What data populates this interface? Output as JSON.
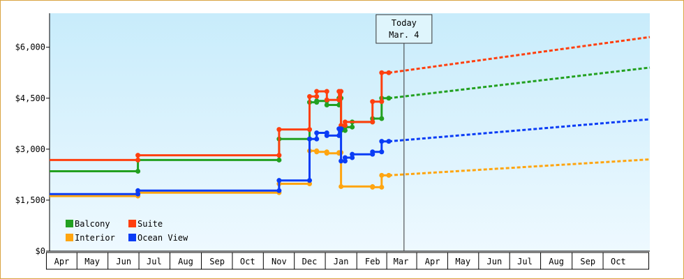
{
  "chart_data": {
    "type": "line",
    "title": "",
    "xlabel": "",
    "ylabel": "",
    "ylim": [
      0,
      7000
    ],
    "yticks": [
      0,
      1500,
      3000,
      4500,
      6000
    ],
    "ytick_labels": [
      "$0",
      "$1,500",
      "$3,000",
      "$4,500",
      "$6,000"
    ],
    "xlim": [
      "2013-03-20",
      "2014-11-01"
    ],
    "month_labels": [
      {
        "date": "2013-04-01",
        "label": "Apr"
      },
      {
        "date": "2013-05-01",
        "label": "May"
      },
      {
        "date": "2013-06-01",
        "label": "Jun"
      },
      {
        "date": "2013-07-01",
        "label": "Jul"
      },
      {
        "date": "2013-08-01",
        "label": "Aug"
      },
      {
        "date": "2013-09-01",
        "label": "Sep"
      },
      {
        "date": "2013-10-01",
        "label": "Oct"
      },
      {
        "date": "2013-11-01",
        "label": "Nov"
      },
      {
        "date": "2013-12-01",
        "label": "Dec"
      },
      {
        "date": "2014-01-01",
        "label": "Jan"
      },
      {
        "date": "2014-02-01",
        "label": "Feb"
      },
      {
        "date": "2014-03-01",
        "label": "Mar"
      },
      {
        "date": "2014-04-01",
        "label": "Apr"
      },
      {
        "date": "2014-05-01",
        "label": "May"
      },
      {
        "date": "2014-06-01",
        "label": "Jun"
      },
      {
        "date": "2014-07-01",
        "label": "Jul"
      },
      {
        "date": "2014-08-01",
        "label": "Aug"
      },
      {
        "date": "2014-09-01",
        "label": "Sep"
      },
      {
        "date": "2014-10-01",
        "label": "Oct"
      }
    ],
    "today": {
      "date": "2014-03-04",
      "label_line1": "Today",
      "label_line2": "Mar. 4"
    },
    "grid": false,
    "background": {
      "top": "#c8ecfb",
      "bottom": "#eef9ff"
    },
    "legend_position": "bottom-left",
    "series": [
      {
        "name": "Balcony",
        "color": "#22a020",
        "points": [
          [
            "2013-03-20",
            2350
          ],
          [
            "2013-06-15",
            2350
          ],
          [
            "2013-06-15",
            2680
          ],
          [
            "2013-11-01",
            2680
          ],
          [
            "2013-11-01",
            3300
          ],
          [
            "2013-12-01",
            3300
          ],
          [
            "2013-12-01",
            4380
          ],
          [
            "2013-12-08",
            4380
          ],
          [
            "2013-12-08",
            4420
          ],
          [
            "2013-12-18",
            4420
          ],
          [
            "2013-12-18",
            4300
          ],
          [
            "2013-12-30",
            4300
          ],
          [
            "2013-12-30",
            4500
          ],
          [
            "2014-01-01",
            4500
          ],
          [
            "2014-01-01",
            3550
          ],
          [
            "2014-01-05",
            3550
          ],
          [
            "2014-01-05",
            3650
          ],
          [
            "2014-01-12",
            3650
          ],
          [
            "2014-01-12",
            3800
          ],
          [
            "2014-02-01",
            3800
          ],
          [
            "2014-02-01",
            3900
          ],
          [
            "2014-02-10",
            3900
          ],
          [
            "2014-02-10",
            4500
          ],
          [
            "2014-02-17",
            4500
          ]
        ],
        "forecast": [
          [
            "2014-02-17",
            4500
          ],
          [
            "2014-11-01",
            5400
          ]
        ]
      },
      {
        "name": "Suite",
        "color": "#ff3f0e",
        "points": [
          [
            "2013-03-20",
            2680
          ],
          [
            "2013-06-15",
            2680
          ],
          [
            "2013-06-15",
            2820
          ],
          [
            "2013-11-01",
            2820
          ],
          [
            "2013-11-01",
            3580
          ],
          [
            "2013-12-01",
            3580
          ],
          [
            "2013-12-01",
            4550
          ],
          [
            "2013-12-08",
            4550
          ],
          [
            "2013-12-08",
            4700
          ],
          [
            "2013-12-18",
            4700
          ],
          [
            "2013-12-18",
            4450
          ],
          [
            "2013-12-30",
            4450
          ],
          [
            "2013-12-30",
            4700
          ],
          [
            "2014-01-01",
            4700
          ],
          [
            "2014-01-01",
            3700
          ],
          [
            "2014-01-05",
            3700
          ],
          [
            "2014-01-05",
            3800
          ],
          [
            "2014-02-01",
            3800
          ],
          [
            "2014-02-01",
            4400
          ],
          [
            "2014-02-10",
            4400
          ],
          [
            "2014-02-10",
            5250
          ],
          [
            "2014-02-17",
            5250
          ]
        ],
        "forecast": [
          [
            "2014-02-17",
            5250
          ],
          [
            "2014-11-01",
            6300
          ]
        ]
      },
      {
        "name": "Interior",
        "color": "#ffa510",
        "points": [
          [
            "2013-03-20",
            1620
          ],
          [
            "2013-06-15",
            1620
          ],
          [
            "2013-06-15",
            1720
          ],
          [
            "2013-11-01",
            1720
          ],
          [
            "2013-11-01",
            1980
          ],
          [
            "2013-12-01",
            1980
          ],
          [
            "2013-12-01",
            2950
          ],
          [
            "2013-12-08",
            2950
          ],
          [
            "2013-12-08",
            2920
          ],
          [
            "2013-12-18",
            2920
          ],
          [
            "2013-12-18",
            2880
          ],
          [
            "2013-12-30",
            2880
          ],
          [
            "2013-12-30",
            2900
          ],
          [
            "2014-01-01",
            2900
          ],
          [
            "2014-01-01",
            1900
          ],
          [
            "2014-02-01",
            1900
          ],
          [
            "2014-02-01",
            1880
          ],
          [
            "2014-02-10",
            1880
          ],
          [
            "2014-02-10",
            2230
          ],
          [
            "2014-02-17",
            2230
          ]
        ],
        "forecast": [
          [
            "2014-02-17",
            2230
          ],
          [
            "2014-11-01",
            2700
          ]
        ]
      },
      {
        "name": "Ocean View",
        "color": "#0a3cf5",
        "points": [
          [
            "2013-03-20",
            1680
          ],
          [
            "2013-06-15",
            1680
          ],
          [
            "2013-06-15",
            1780
          ],
          [
            "2013-11-01",
            1780
          ],
          [
            "2013-11-01",
            2080
          ],
          [
            "2013-12-01",
            2080
          ],
          [
            "2013-12-01",
            3300
          ],
          [
            "2013-12-08",
            3300
          ],
          [
            "2013-12-08",
            3480
          ],
          [
            "2013-12-18",
            3480
          ],
          [
            "2013-12-18",
            3400
          ],
          [
            "2013-12-30",
            3400
          ],
          [
            "2013-12-30",
            3600
          ],
          [
            "2014-01-01",
            3600
          ],
          [
            "2014-01-01",
            2650
          ],
          [
            "2014-01-05",
            2650
          ],
          [
            "2014-01-05",
            2750
          ],
          [
            "2014-01-12",
            2750
          ],
          [
            "2014-01-12",
            2850
          ],
          [
            "2014-02-01",
            2850
          ],
          [
            "2014-02-01",
            2920
          ],
          [
            "2014-02-10",
            2920
          ],
          [
            "2014-02-10",
            3230
          ],
          [
            "2014-02-17",
            3230
          ]
        ],
        "forecast": [
          [
            "2014-02-17",
            3230
          ],
          [
            "2014-11-01",
            3880
          ]
        ]
      }
    ]
  }
}
